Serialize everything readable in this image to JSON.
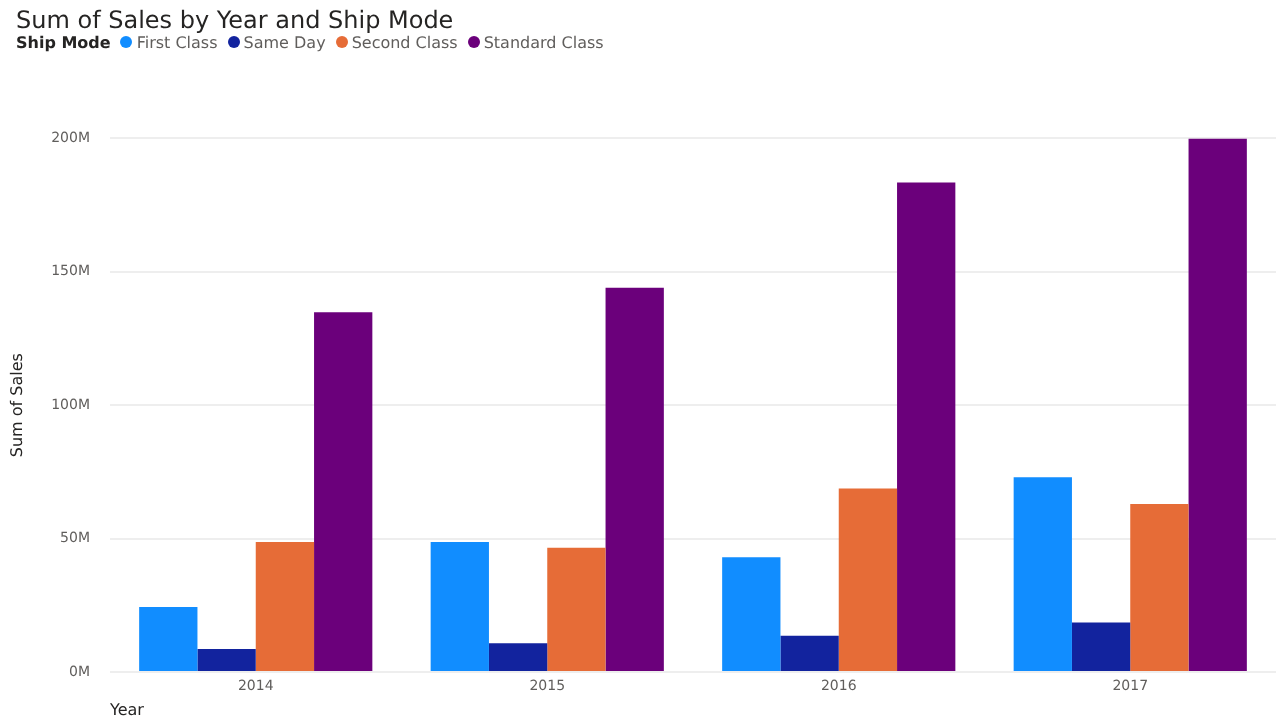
{
  "chart_data": {
    "type": "bar",
    "title": "Sum of Sales by Year and Ship Mode",
    "xlabel": "Year",
    "ylabel": "Sum of Sales",
    "legend_title": "Ship Mode",
    "legend": "top left",
    "grid": "y",
    "categories": [
      "2014",
      "2015",
      "2016",
      "2017"
    ],
    "series": [
      {
        "name": "First Class",
        "color": "#118dff",
        "values": [
          24400000,
          48700000,
          43000000,
          73000000
        ]
      },
      {
        "name": "Same Day",
        "color": "#12239e",
        "values": [
          8600000,
          10800000,
          13600000,
          18600000
        ]
      },
      {
        "name": "Second Class",
        "color": "#e66c37",
        "values": [
          48700000,
          46600000,
          68800000,
          63000000
        ]
      },
      {
        "name": "Standard Class",
        "color": "#6b007b",
        "values": [
          134800000,
          144000000,
          183500000,
          200000000
        ]
      }
    ],
    "ylim": [
      0,
      200000000
    ],
    "yticks": [
      {
        "value": 0,
        "label": "0M"
      },
      {
        "value": 50000000,
        "label": "50M"
      },
      {
        "value": 100000000,
        "label": "100M"
      },
      {
        "value": 150000000,
        "label": "150M"
      },
      {
        "value": 200000000,
        "label": "200M"
      }
    ]
  }
}
